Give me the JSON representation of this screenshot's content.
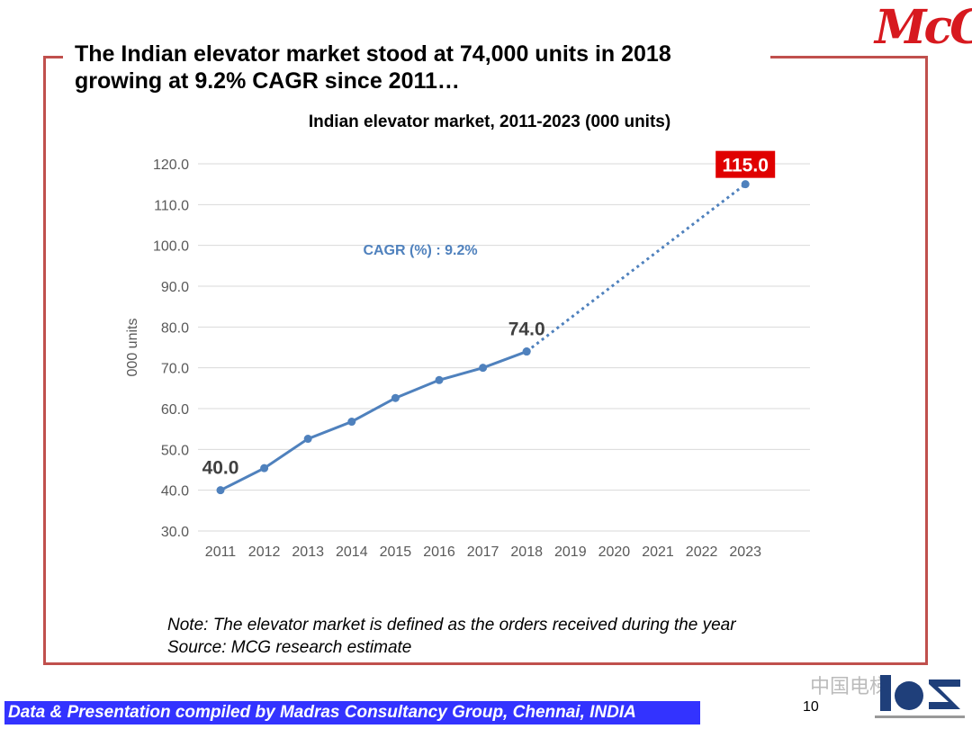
{
  "slide_title": "The Indian elevator market stood at 74,000 units in 2018 growing at 9.2% CAGR since 2011…",
  "logo": "McG",
  "note": "Note: The elevator market is defined as the orders received during the year",
  "source": "Source: MCG research estimate",
  "footer": "Data & Presentation compiled by Madras Consultancy Group, Chennai, INDIA",
  "page_number": "10",
  "watermark": "中国电梯",
  "colors": {
    "frame": "#c0504d",
    "line": "#4f81bd",
    "highlight": "#e00000",
    "footer": "#3333ff"
  },
  "chart_data": {
    "type": "line",
    "title": "Indian elevator market, 2011-2023 (000 units)",
    "ylabel": "000 units",
    "xlabel": "",
    "ylim": [
      30,
      120
    ],
    "yticks": [
      "30.0",
      "40.0",
      "50.0",
      "60.0",
      "70.0",
      "80.0",
      "90.0",
      "100.0",
      "110.0",
      "120.0"
    ],
    "categories": [
      "2011",
      "2012",
      "2013",
      "2014",
      "2015",
      "2016",
      "2017",
      "2018",
      "2019",
      "2020",
      "2021",
      "2022",
      "2023"
    ],
    "grid": true,
    "series": [
      {
        "style": "solid",
        "x": [
          "2011",
          "2012",
          "2013",
          "2014",
          "2015",
          "2016",
          "2017",
          "2018"
        ],
        "values": [
          40.0,
          45.4,
          52.6,
          56.8,
          62.6,
          67.0,
          70.0,
          74.0
        ]
      },
      {
        "style": "dotted",
        "x": [
          "2018",
          "2023"
        ],
        "values": [
          74.0,
          115.0
        ]
      }
    ],
    "data_labels": [
      {
        "x": "2011",
        "text": "40.0"
      },
      {
        "x": "2018",
        "text": "74.0"
      },
      {
        "x": "2023",
        "text": "115.0",
        "highlight": true
      }
    ],
    "annotation": "CAGR (%) : 9.2%"
  }
}
